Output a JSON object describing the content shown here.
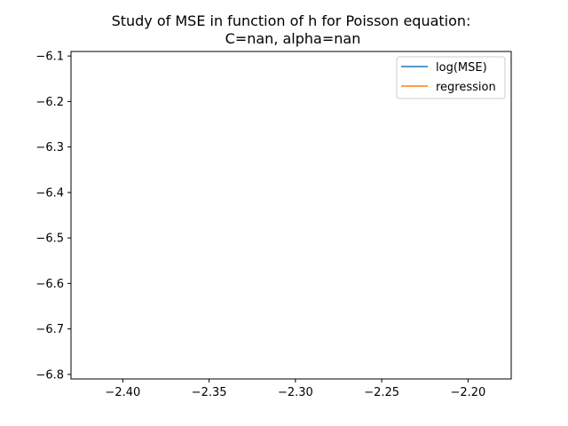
{
  "chart_data": {
    "type": "line",
    "title_lines": [
      "Study of MSE in function of h for Poisson equation:",
      "C=nan, alpha=nan"
    ],
    "xlabel": "",
    "ylabel": "",
    "xlim": [
      -2.43,
      -2.175
    ],
    "ylim": [
      -6.81,
      -6.09
    ],
    "xticks": [
      -2.4,
      -2.35,
      -2.3,
      -2.25,
      -2.2
    ],
    "xtick_labels": [
      "−2.40",
      "−2.35",
      "−2.30",
      "−2.25",
      "−2.20"
    ],
    "yticks": [
      -6.1,
      -6.2,
      -6.3,
      -6.4,
      -6.5,
      -6.6,
      -6.7,
      -6.8
    ],
    "ytick_labels": [
      "−6.1",
      "−6.2",
      "−6.3",
      "−6.4",
      "−6.5",
      "−6.6",
      "−6.7",
      "−6.8"
    ],
    "grid": false,
    "legend_position": "top-right",
    "series": [
      {
        "name": "log(MSE)",
        "color": "#1f77b4",
        "x": [],
        "y": []
      },
      {
        "name": "regression",
        "color": "#ff7f0e",
        "x": [],
        "y": []
      }
    ]
  }
}
